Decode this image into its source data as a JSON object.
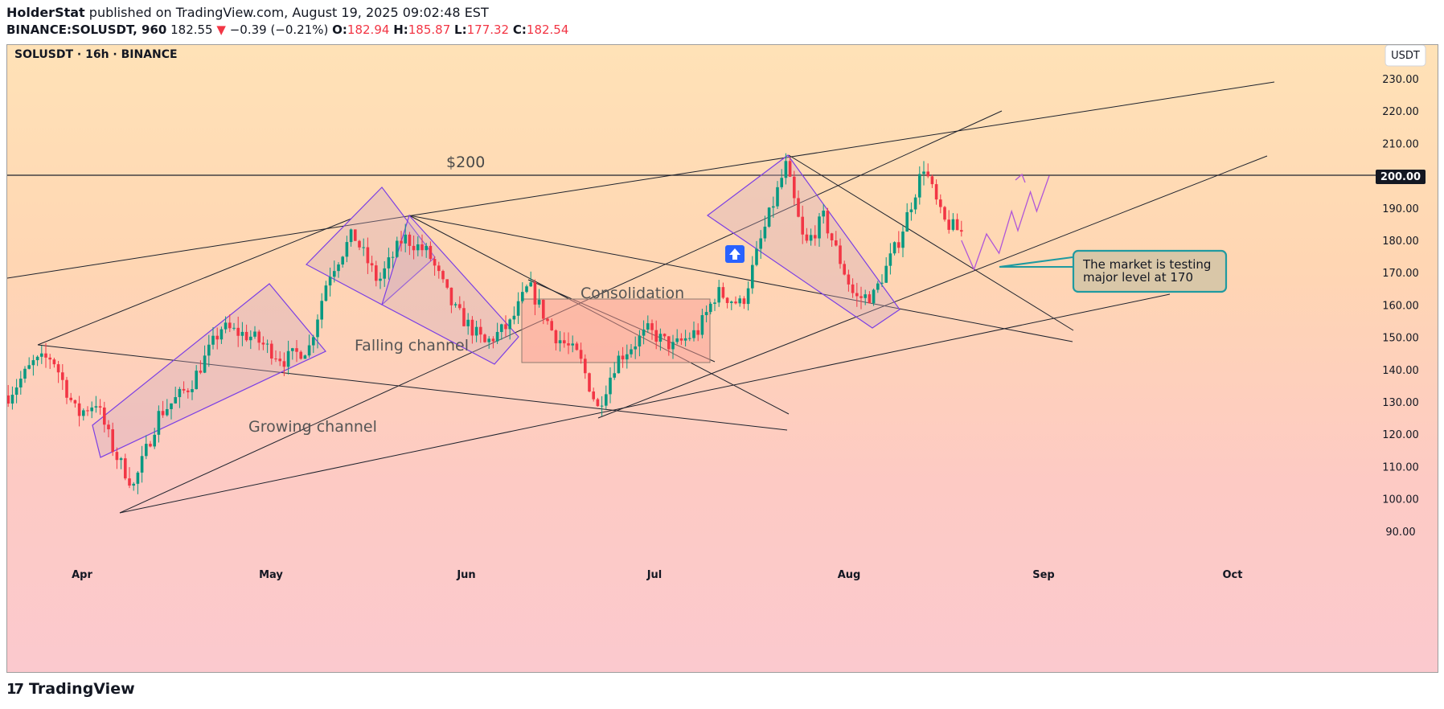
{
  "header": {
    "author": "HolderStat",
    "published": "published on TradingView.com, August 19, 2025 09:02:48 EST",
    "symbol_line": "BINANCE:SOLUSDT, 960",
    "last": "182.55",
    "change_arrow": "▼",
    "change": "−0.39 (−0.21%)",
    "o_label": "O:",
    "o_val": "182.94",
    "h_label": "H:",
    "h_val": "185.87",
    "l_label": "L:",
    "l_val": "177.32",
    "c_label": "C:",
    "c_val": "182.54"
  },
  "chart_title": "SOLUSDT · 16h · BINANCE",
  "currency_button": "USDT",
  "footer_brand": "TradingView",
  "colors": {
    "up": "#089981",
    "down": "#f23645",
    "pattern": "#7b3fe4",
    "callout_border": "#1f9aa0",
    "callout_bg": "#d9c7a8",
    "line": "#1e222d"
  },
  "annotations": {
    "level_label": "$200",
    "growing": "Growing channel",
    "falling": "Falling channel",
    "consolidation": "Consolidation",
    "callout": [
      "The market is testing",
      "major level at 170"
    ]
  },
  "chart_data": {
    "type": "candlestick",
    "title": "SOLUSDT · 16h · BINANCE",
    "y_ticks": [
      "230.00",
      "220.00",
      "210.00",
      "200.00",
      "190.00",
      "180.00",
      "170.00",
      "160.00",
      "150.00",
      "140.00",
      "130.00",
      "120.00",
      "110.00",
      "100.00",
      "90.00"
    ],
    "x_ticks": [
      "Apr",
      "May",
      "Jun",
      "Jul",
      "Aug",
      "Sep",
      "Oct"
    ],
    "highlight_level": "200.00",
    "approx_range": [
      90,
      230
    ],
    "grid": false,
    "anchors": [
      [
        "2025-03-20",
        132
      ],
      [
        "2025-03-24",
        142
      ],
      [
        "2025-03-27",
        144
      ],
      [
        "2025-03-31",
        126
      ],
      [
        "2025-04-03",
        130
      ],
      [
        "2025-04-06",
        114
      ],
      [
        "2025-04-09",
        104
      ],
      [
        "2025-04-13",
        126
      ],
      [
        "2025-04-18",
        135
      ],
      [
        "2025-04-23",
        153
      ],
      [
        "2025-04-28",
        150
      ],
      [
        "2025-05-03",
        143
      ],
      [
        "2025-05-07",
        147
      ],
      [
        "2025-05-10",
        169
      ],
      [
        "2025-05-14",
        182
      ],
      [
        "2025-05-18",
        167
      ],
      [
        "2025-05-22",
        181
      ],
      [
        "2025-05-26",
        176
      ],
      [
        "2025-05-30",
        159
      ],
      [
        "2025-06-04",
        148
      ],
      [
        "2025-06-08",
        154
      ],
      [
        "2025-06-11",
        166
      ],
      [
        "2025-06-15",
        151
      ],
      [
        "2025-06-19",
        144
      ],
      [
        "2025-06-22",
        128
      ],
      [
        "2025-06-25",
        143
      ],
      [
        "2025-06-30",
        152
      ],
      [
        "2025-07-04",
        147
      ],
      [
        "2025-07-08",
        152
      ],
      [
        "2025-07-11",
        164
      ],
      [
        "2025-07-15",
        160
      ],
      [
        "2025-07-18",
        180
      ],
      [
        "2025-07-22",
        203
      ],
      [
        "2025-07-25",
        178
      ],
      [
        "2025-07-28",
        187
      ],
      [
        "2025-08-02",
        162
      ],
      [
        "2025-08-05",
        163
      ],
      [
        "2025-08-09",
        180
      ],
      [
        "2025-08-13",
        203
      ],
      [
        "2025-08-16",
        186
      ],
      [
        "2025-08-19",
        182.5
      ]
    ],
    "projection": [
      [
        "2025-08-19",
        180
      ],
      [
        "2025-08-21",
        171
      ],
      [
        "2025-08-23",
        182
      ],
      [
        "2025-08-25",
        176
      ],
      [
        "2025-08-27",
        189
      ],
      [
        "2025-08-28",
        183
      ],
      [
        "2025-08-30",
        195
      ],
      [
        "2025-08-31",
        189
      ],
      [
        "2025-09-02",
        200
      ]
    ]
  }
}
